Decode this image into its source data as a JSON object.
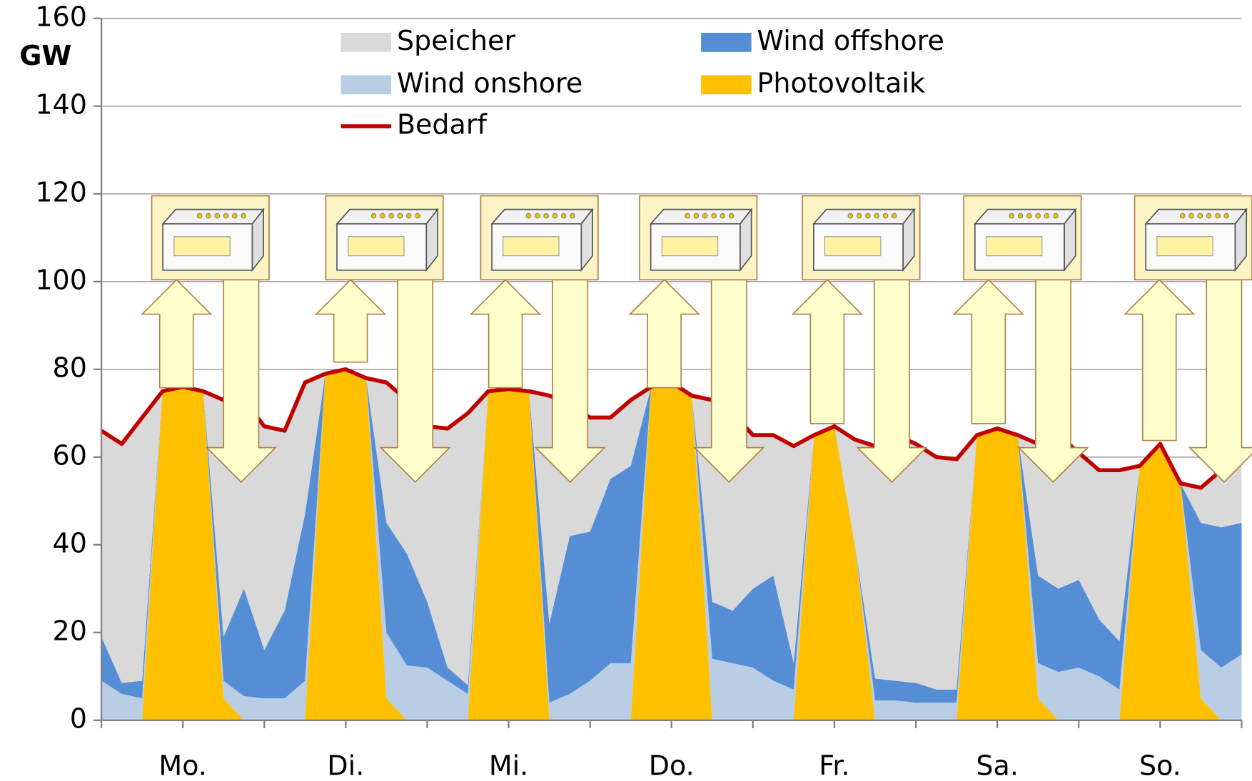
{
  "chart_data": {
    "type": "stacked_area",
    "y_unit": "GW",
    "xlim": [
      0,
      168
    ],
    "ylim": [
      0,
      160
    ],
    "yticks": [
      0,
      20,
      40,
      60,
      80,
      100,
      120,
      140,
      160
    ],
    "xticks": [
      {
        "value": 12,
        "label": "Mo."
      },
      {
        "value": 36,
        "label": "Di."
      },
      {
        "value": 60,
        "label": "Mi."
      },
      {
        "value": 84,
        "label": "Do."
      },
      {
        "value": 108,
        "label": "Fr."
      },
      {
        "value": 132,
        "label": "Sa."
      },
      {
        "value": 156,
        "label": "So."
      }
    ],
    "x_tick_marks": [
      0,
      24,
      48,
      72,
      96,
      120,
      144,
      168
    ],
    "grid": true,
    "x": [
      0,
      3,
      6,
      9,
      12,
      15,
      18,
      21,
      24,
      27,
      30,
      33,
      36,
      39,
      42,
      45,
      48,
      51,
      54,
      57,
      60,
      63,
      66,
      69,
      72,
      75,
      78,
      81,
      84,
      87,
      90,
      93,
      96,
      99,
      102,
      105,
      108,
      111,
      114,
      117,
      120,
      123,
      126,
      129,
      132,
      135,
      138,
      141,
      144,
      147,
      150,
      153,
      156,
      159,
      162,
      165,
      168
    ],
    "series": [
      {
        "name": "Photovoltaik",
        "color": "#ffc000",
        "values": [
          0,
          0,
          0,
          75,
          76,
          75,
          5,
          0,
          0,
          0,
          0,
          79,
          80,
          78,
          5,
          0,
          0,
          0,
          0,
          75,
          75.5,
          75,
          0,
          0,
          0,
          0,
          0,
          76,
          77,
          74,
          0,
          0,
          0,
          0,
          0,
          65,
          67,
          40,
          0,
          0,
          0,
          0,
          0,
          65,
          66.5,
          65,
          5,
          0,
          0,
          0,
          0,
          58,
          63,
          54,
          5,
          0,
          0
        ]
      },
      {
        "name": "Wind onshore",
        "color": "#b9cde5",
        "values": [
          9,
          6,
          5,
          0,
          0,
          0,
          4,
          5.5,
          5,
          5,
          9,
          0,
          0,
          0,
          15,
          12.5,
          12,
          9,
          6,
          0,
          0,
          0,
          4,
          6,
          9,
          13,
          13,
          0,
          0,
          0,
          14,
          13,
          12,
          9,
          7,
          0,
          0,
          0,
          4.5,
          4.5,
          4,
          4,
          4,
          0,
          0,
          0,
          8,
          11,
          12,
          10,
          7,
          0,
          0,
          0,
          11,
          12,
          15
        ]
      },
      {
        "name": "Wind offshore",
        "color": "#558ed5",
        "values": [
          10,
          2.5,
          4,
          0,
          0,
          0,
          10,
          24.5,
          11,
          20,
          38,
          0,
          0,
          0,
          25,
          25.5,
          15,
          3,
          2,
          0,
          0,
          0,
          18,
          36,
          34,
          42,
          45,
          0,
          0,
          0,
          13,
          12,
          18,
          24,
          6,
          0,
          0,
          0,
          5,
          4.5,
          4.5,
          3,
          3,
          0,
          0,
          0,
          20,
          19,
          20,
          13,
          11,
          0,
          0,
          0,
          29,
          32,
          30
        ]
      },
      {
        "name": "Speicher",
        "color": "#d9d9d9",
        "values": [
          47,
          54.5,
          60,
          0,
          0,
          0,
          54,
          43,
          51,
          41,
          30,
          0,
          0,
          0,
          32,
          35,
          40,
          54.5,
          62,
          0,
          0,
          0,
          52,
          30,
          26,
          14,
          15,
          0,
          0,
          0,
          46,
          45,
          35,
          32,
          49.5,
          0,
          0,
          24,
          53,
          56,
          54.5,
          53,
          52.5,
          0,
          0,
          0,
          30,
          35,
          29,
          34,
          39,
          0,
          0,
          0,
          8,
          13,
          14
        ]
      }
    ],
    "line_series": [
      {
        "name": "Bedarf",
        "color": "#c00000",
        "values": [
          66,
          63,
          69,
          75,
          76,
          75,
          73,
          73,
          67,
          66,
          77,
          79,
          80,
          78,
          77,
          73,
          67,
          66.5,
          70,
          75,
          75.5,
          75,
          74,
          72,
          69,
          69,
          73,
          76,
          77,
          74,
          73,
          70,
          65,
          65,
          62.5,
          65,
          67,
          64,
          62.5,
          65,
          63,
          60,
          59.5,
          65,
          66.5,
          65,
          63,
          65,
          61,
          57,
          57,
          58,
          63,
          54,
          53,
          57,
          59
        ]
      }
    ]
  }
}
